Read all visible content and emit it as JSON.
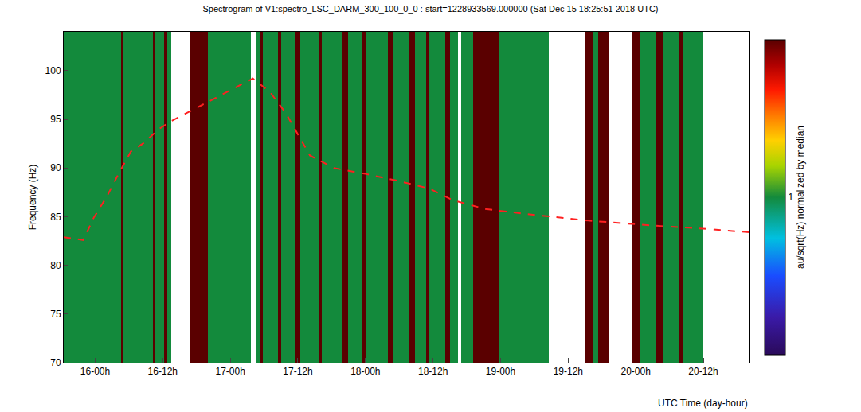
{
  "chart_data": {
    "type": "heatmap",
    "title": "Spectrogram of V1:spectro_LSC_DARM_300_100_0_0 : start=1228933569.000000 (Sat Dec 15 18:25:51 2018 UTC)",
    "x_label": "UTC Time (day-hour)",
    "y_label": "Frequency (Hz)",
    "xlim": [
      "2018-12-15 18:25",
      "2018-12-20 20:12"
    ],
    "ylim": [
      70,
      104
    ],
    "xticks": [
      {
        "value": "2018-12-16 00:00",
        "label": "16-00h"
      },
      {
        "value": "2018-12-16 12:00",
        "label": "16-12h"
      },
      {
        "value": "2018-12-17 00:00",
        "label": "17-00h"
      },
      {
        "value": "2018-12-17 12:00",
        "label": "17-12h"
      },
      {
        "value": "2018-12-18 00:00",
        "label": "18-00h"
      },
      {
        "value": "2018-12-18 12:00",
        "label": "18-12h"
      },
      {
        "value": "2018-12-19 00:00",
        "label": "19-00h"
      },
      {
        "value": "2018-12-19 12:00",
        "label": "19-12h"
      },
      {
        "value": "2018-12-20 00:00",
        "label": "20-00h"
      },
      {
        "value": "2018-12-20 12:00",
        "label": "20-12h"
      }
    ],
    "yticks": [
      70,
      75,
      80,
      85,
      90,
      95,
      100
    ],
    "heatmap": {
      "x_edges": [
        "2018-12-15 18:25",
        "2018-12-16 04:40",
        "2018-12-16 05:05",
        "2018-12-16 10:19",
        "2018-12-16 10:44",
        "2018-12-16 12:17",
        "2018-12-16 12:51",
        "2018-12-16 13:34",
        "2018-12-16 16:57",
        "2018-12-16 20:03",
        "2018-12-17 03:41",
        "2018-12-17 04:32",
        "2018-12-17 05:14",
        "2018-12-17 05:48",
        "2018-12-17 08:29",
        "2018-12-17 09:03",
        "2018-12-17 11:36",
        "2018-12-17 12:26",
        "2018-12-17 15:41",
        "2018-12-17 16:15",
        "2018-12-17 19:47",
        "2018-12-17 20:55",
        "2018-12-17 23:19",
        "2018-12-18 00:01",
        "2018-12-18 03:59",
        "2018-12-18 04:49",
        "2018-12-18 07:47",
        "2018-12-18 08:47",
        "2018-12-18 10:45",
        "2018-12-18 11:19",
        "2018-12-18 14:09",
        "2018-12-18 14:59",
        "2018-12-18 16:24",
        "2018-12-18 16:58",
        "2018-12-18 19:05",
        "2018-12-18 23:45",
        "2018-12-19 08:30",
        "2018-12-19 14:52",
        "2018-12-19 16:17",
        "2018-12-19 17:16",
        "2018-12-19 19:06",
        "2018-12-19 23:20",
        "2018-12-20 00:45",
        "2018-12-20 03:35",
        "2018-12-20 04:43",
        "2018-12-20 07:49",
        "2018-12-20 08:31",
        "2018-12-20 12:03",
        "2018-12-20 20:12"
      ],
      "y_edges": [
        70,
        104
      ],
      "cells": [
        1,
        2,
        1,
        2,
        1,
        2,
        1,
        null,
        2,
        1,
        null,
        1,
        2,
        1,
        2,
        1,
        2,
        1,
        2,
        1,
        2,
        1,
        2,
        1,
        2,
        1,
        2,
        1,
        2,
        1,
        2,
        1,
        null,
        1,
        2,
        1,
        null,
        2,
        1,
        2,
        null,
        2,
        1,
        2,
        1,
        2,
        1,
        null
      ]
    },
    "colorbar_label": "au/sqrt(Hz) normalized by median",
    "colorbar_range": [
      0,
      2
    ],
    "colorbar_ticks": [
      1
    ],
    "series": [
      {
        "color": "#ff2020",
        "line_style": "dash",
        "x": [
          "2018-12-15 18:25",
          "2018-12-15 21:54",
          "2018-12-15 23:45",
          "2018-12-16 02:06",
          "2018-12-16 04:14",
          "2018-12-16 06:21",
          "2018-12-16 08:28",
          "2018-12-16 11:18",
          "2018-12-16 13:25",
          "2018-12-17 01:25",
          "2018-12-17 04:00",
          "2018-12-17 07:04",
          "2018-12-17 09:54",
          "2018-12-17 14:08",
          "2018-12-17 18:22",
          "2018-12-18 00:00",
          "2018-12-18 05:40",
          "2018-12-18 11:19",
          "2018-12-18 15:33",
          "2018-12-18 21:13",
          "2018-12-19 04:16",
          "2018-12-19 15:34",
          "2018-12-20 02:52",
          "2018-12-20 11:20",
          "2018-12-20 20:12"
        ],
        "values": [
          82.9,
          82.6,
          84.9,
          87.1,
          89.5,
          91.7,
          92.5,
          94.0,
          94.8,
          98.4,
          99.2,
          97.8,
          95.6,
          91.3,
          90.0,
          89.4,
          88.7,
          87.9,
          86.7,
          85.8,
          85.3,
          84.6,
          84.1,
          83.8,
          83.4
        ]
      }
    ]
  }
}
